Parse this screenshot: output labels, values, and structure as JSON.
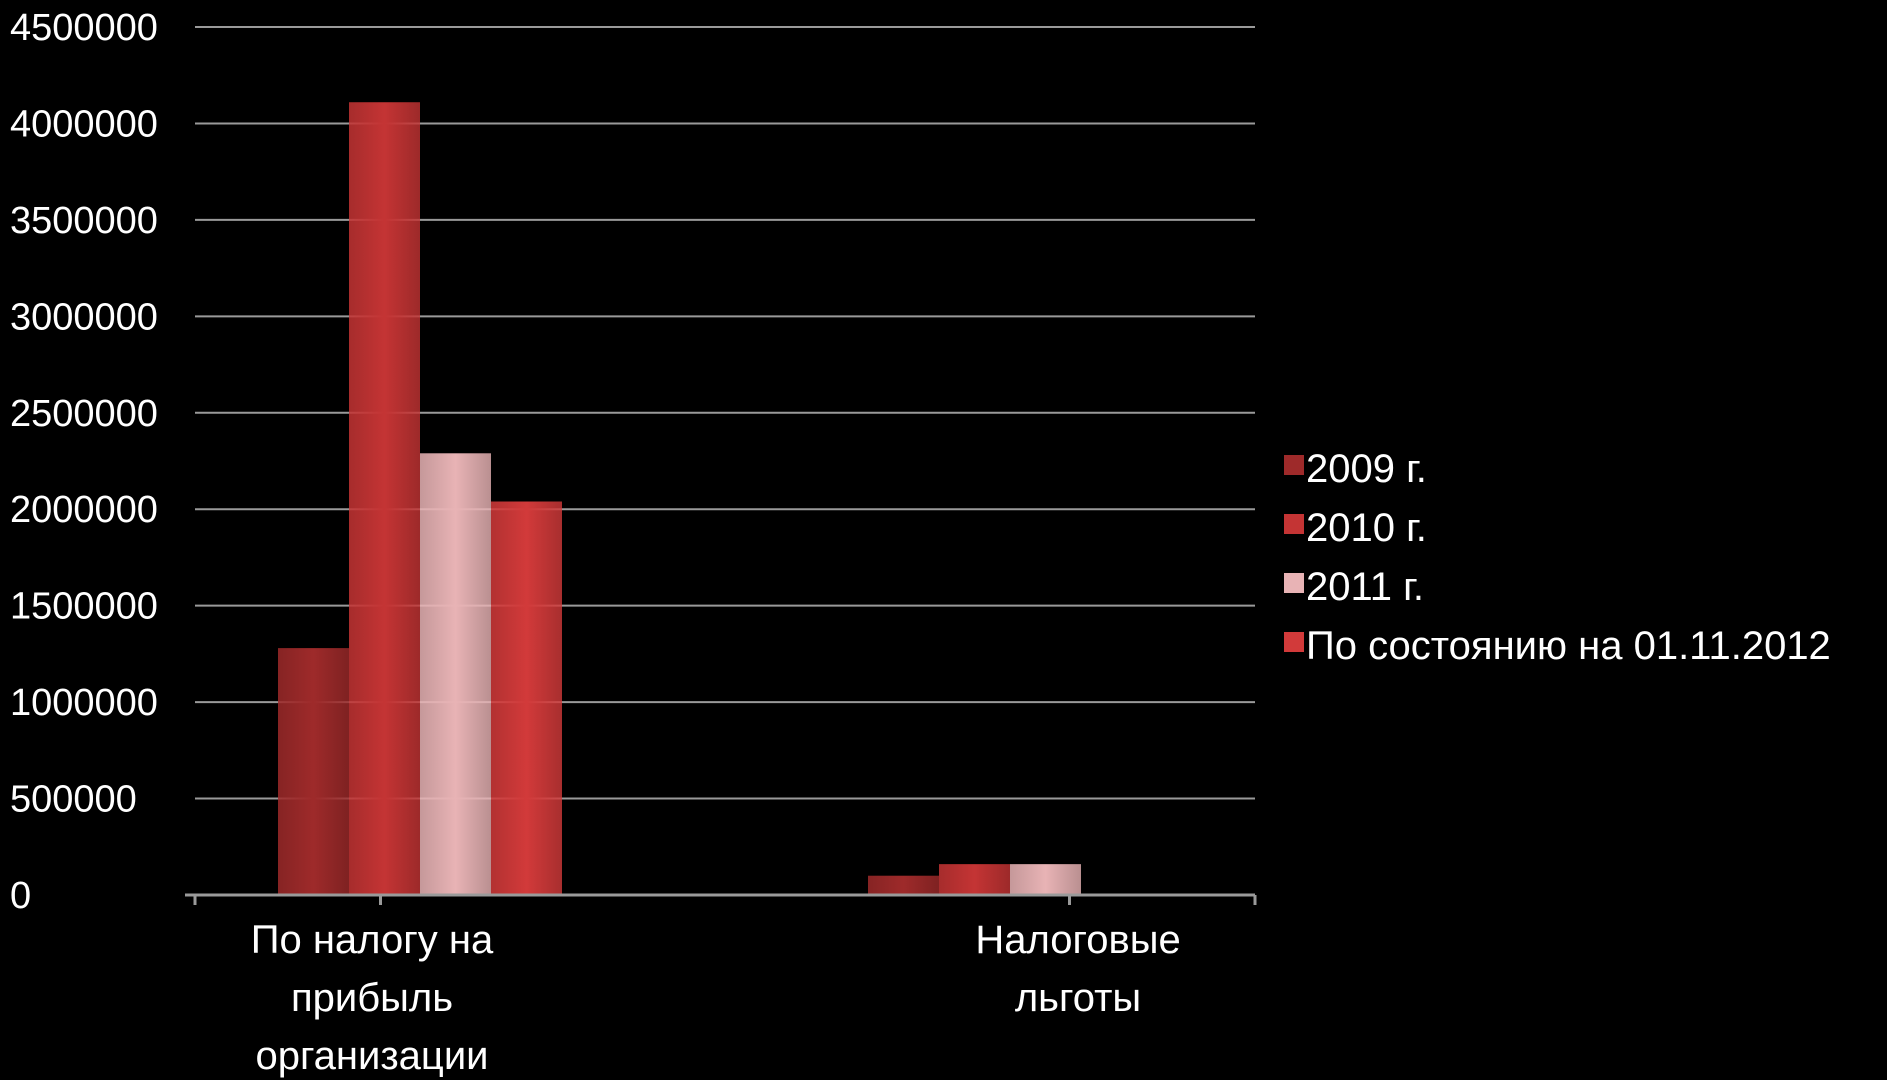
{
  "chart_data": {
    "type": "bar",
    "title": "",
    "xlabel": "",
    "ylabel": "",
    "ylim": [
      0,
      4500000
    ],
    "ytick_step": 500000,
    "yticks": [
      "0",
      "500000",
      "1000000",
      "1500000",
      "2000000",
      "2500000",
      "3000000",
      "3500000",
      "4000000",
      "4500000"
    ],
    "grid": true,
    "legend_position": "right",
    "categories": [
      [
        "По налогу на",
        "прибыль",
        "организации"
      ],
      [
        "Налоговые",
        "льготы"
      ]
    ],
    "series": [
      {
        "name": "2009 г.",
        "values": [
          1280000,
          100000
        ],
        "color": "#9e2a2a"
      },
      {
        "name": "2010 г.",
        "values": [
          4110000,
          160000
        ],
        "color": "#c43434"
      },
      {
        "name": "2011 г.",
        "values": [
          2290000,
          160000
        ],
        "color": "#e8b3b5"
      },
      {
        "name": "По состоянию на 01.11.2012",
        "values": [
          2040000,
          0
        ],
        "color": "#d23a3a"
      }
    ]
  }
}
